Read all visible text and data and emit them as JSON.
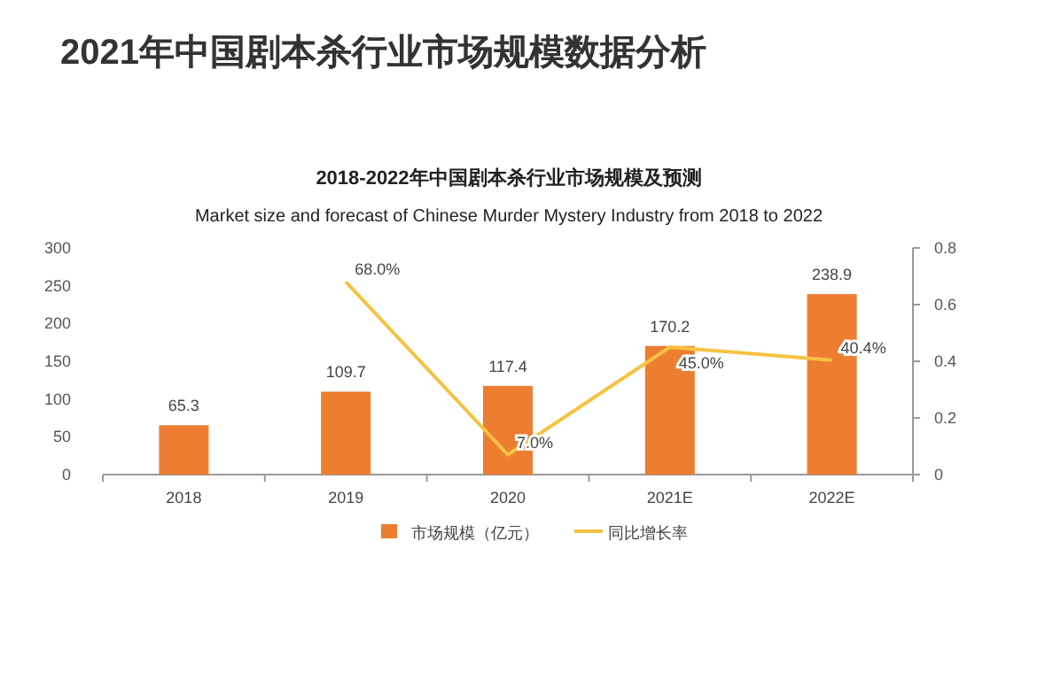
{
  "chart_data": {
    "type": "bar",
    "title": "2021年中国剧本杀行业市场规模数据分析",
    "subtitle": "2018-2022年中国剧本杀行业市场规模及预测",
    "annotations": [
      "Market size and forecast of Chinese Murder Mystery Industry from 2018 to 2022"
    ],
    "categories": [
      "2018",
      "2019",
      "2020",
      "2021E",
      "2022E"
    ],
    "series": [
      {
        "name": "市场规模（亿元）",
        "color": "#ed7d31",
        "values": [
          65.3,
          109.7,
          117.4,
          170.2,
          238.9
        ],
        "value_labels": [
          "65.3",
          "109.7",
          "117.4",
          "170.2",
          "238.9"
        ]
      },
      {
        "name": "同比增长率",
        "type": "line",
        "axis": "y2",
        "color": "#f5c342",
        "values": [
          null,
          0.68,
          0.07,
          0.45,
          0.404
        ],
        "value_labels": [
          null,
          "68.0%",
          "7.0%",
          "45.0%",
          "40.4%"
        ]
      }
    ],
    "ylim": [
      0,
      300
    ],
    "yticks": [
      0,
      50,
      100,
      150,
      200,
      250,
      300
    ],
    "y2lim": [
      0,
      0.8
    ],
    "y2ticks": [
      0,
      0.2,
      0.4,
      0.6,
      0.8
    ],
    "legend": "bottom",
    "marker": "none",
    "line_style": "solid"
  }
}
